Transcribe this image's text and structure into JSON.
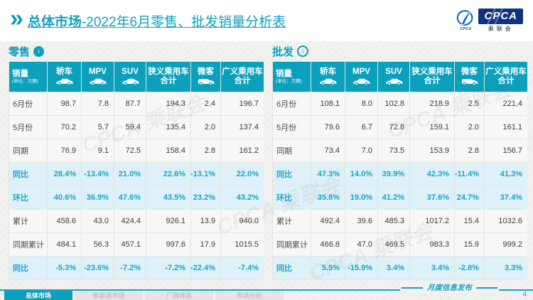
{
  "title": {
    "prefix": "总体市场",
    "rest": "-2022年6月零售、批发销量分析表"
  },
  "logo": {
    "acronym": "CPCA",
    "name": "乘联会",
    "emblem_caption": "CPCA"
  },
  "watermark": "CPCA 乘联会",
  "columns": [
    {
      "label": "销量",
      "sub": "(单位：万辆)"
    },
    {
      "label": "轿车",
      "icon": "sedan-icon"
    },
    {
      "label": "MPV",
      "icon": "mpv-icon"
    },
    {
      "label": "SUV",
      "icon": "suv-icon"
    },
    {
      "label": "狭义乘用车",
      "label2": "合计"
    },
    {
      "label": "微客",
      "icon": "van-icon"
    },
    {
      "label": "广义乘用车",
      "label2": "合计"
    }
  ],
  "tables": [
    {
      "section": "零售",
      "arrow_icon": "circle-down-filled-icon",
      "rows": [
        {
          "label": "6月份",
          "values": [
            "98.7",
            "7.8",
            "87.7",
            "194.3",
            "2.4",
            "196.7"
          ],
          "highlight": false
        },
        {
          "label": "5月份",
          "values": [
            "70.2",
            "5.7",
            "59.4",
            "135.4",
            "2.0",
            "137.4"
          ],
          "highlight": false
        },
        {
          "label": "同期",
          "values": [
            "76.9",
            "9.1",
            "72.5",
            "158.4",
            "2.8",
            "161.2"
          ],
          "highlight": false
        },
        {
          "label": "同比",
          "values": [
            "28.4%",
            "-13.4%",
            "21.0%",
            "22.6%",
            "-13.1%",
            "22.0%"
          ],
          "highlight": true
        },
        {
          "label": "环比",
          "values": [
            "40.6%",
            "36.9%",
            "47.6%",
            "43.5%",
            "23.2%",
            "43.2%"
          ],
          "highlight": true
        },
        {
          "label": "累计",
          "values": [
            "458.6",
            "43.0",
            "424.4",
            "926.1",
            "13.9",
            "940.0"
          ],
          "highlight": false
        },
        {
          "label": "同期累计",
          "values": [
            "484.1",
            "56.3",
            "457.1",
            "997.6",
            "17.9",
            "1015.5"
          ],
          "highlight": false
        },
        {
          "label": "同比",
          "values": [
            "-5.3%",
            "-23.6%",
            "-7.2%",
            "-7.2%",
            "-22.4%",
            "-7.4%"
          ],
          "highlight": true
        }
      ]
    },
    {
      "section": "批发",
      "arrow_icon": "circle-down-outline-icon",
      "rows": [
        {
          "label": "6月份",
          "values": [
            "108.1",
            "8.0",
            "102.8",
            "218.9",
            "2.5",
            "221.4"
          ],
          "highlight": false
        },
        {
          "label": "5月份",
          "values": [
            "79.6",
            "6.7",
            "72.8",
            "159.1",
            "2.0",
            "161.1"
          ],
          "highlight": false
        },
        {
          "label": "同期",
          "values": [
            "73.4",
            "7.0",
            "73.5",
            "153.9",
            "2.8",
            "156.7"
          ],
          "highlight": false
        },
        {
          "label": "同比",
          "values": [
            "47.3%",
            "14.0%",
            "39.9%",
            "42.3%",
            "-11.4%",
            "41.3%"
          ],
          "highlight": true
        },
        {
          "label": "环比",
          "values": [
            "35.8%",
            "19.0%",
            "41.2%",
            "37.6%",
            "24.7%",
            "37.4%"
          ],
          "highlight": true
        },
        {
          "label": "累计",
          "values": [
            "492.4",
            "39.6",
            "485.3",
            "1017.2",
            "15.4",
            "1032.6"
          ],
          "highlight": false
        },
        {
          "label": "同期累计",
          "values": [
            "466.8",
            "47.0",
            "469.5",
            "983.3",
            "15.9",
            "999.2"
          ],
          "highlight": false
        },
        {
          "label": "同比",
          "values": [
            "5.5%",
            "-15.9%",
            "3.4%",
            "3.4%",
            "-2.8%",
            "3.3%"
          ],
          "highlight": true
        }
      ]
    }
  ],
  "footer": {
    "tabs": [
      {
        "label": "总体市场",
        "active": true
      },
      {
        "label": "新能源市场",
        "active": false
      },
      {
        "label": "厂商排名",
        "active": false
      },
      {
        "label": "市场分析",
        "active": false
      }
    ],
    "release": "月度信息发布",
    "page": "4"
  },
  "colors": {
    "accent_teal": "#0ba0bc",
    "highlight_bg": "#def0f8",
    "logo_navy": "#11337e"
  }
}
